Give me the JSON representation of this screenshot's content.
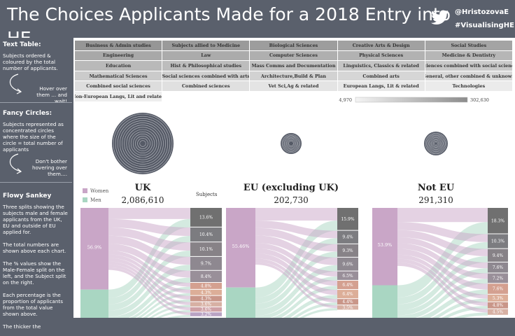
{
  "header": {
    "title": "The Choices Applicants Made for a 2018 Entry into",
    "title_line2": "HE",
    "handle": "@HristozovaE",
    "hashtag": "#VisualisingHE"
  },
  "sidebar": {
    "sections": [
      {
        "heading": "Text Table:",
        "text": "Subjects ordered & coloured by the total number of applicants.",
        "note": "Hover over them ... and wait!"
      },
      {
        "heading": "Fancy Circles:",
        "text": "Subjects represented as concentrated circles where the size of the circle = total number of applicants",
        "note": "Don't bother hovering over them...."
      },
      {
        "heading": "Flowy Sankey",
        "paragraphs": [
          "Three splits showing the subjects male and female applicants from the UK, EU and outside of EU applied for.",
          "The total numbers are shown above each chart.",
          "The % values show the Male-Female split on the left, and the Subject split on the right.",
          "Each percentage is the proportion of applicants from the total value shown above.",
          "The thicker the"
        ]
      }
    ]
  },
  "table": {
    "rows": [
      [
        "Business & Admin studies",
        "Subjects allied to Medicine",
        "Biological Sciences",
        "Creative Arts & Design",
        "Social Studies"
      ],
      [
        "Engineering",
        "Law",
        "Computer Sciences",
        "Physical Sciences",
        "Medicine & Dentistry"
      ],
      [
        "Education",
        "Hist & Philosophical studies",
        "Mass Comms and Documentation",
        "Linguistics, Classics & related",
        "Sciences combined with social science"
      ],
      [
        "Mathematical Sciences",
        "Social sciences combined with arts",
        "Architecture,Build & Plan",
        "Combined arts",
        "General, other combined & unknown"
      ],
      [
        "Combined social sciences",
        "Combined sciences",
        "Vet Sci,Ag & related",
        "European Langs, Lit & related",
        "Technologies"
      ],
      [
        "Non-European Langs, Lit and related"
      ]
    ],
    "legend": {
      "min": "4,970",
      "max": "302,630"
    }
  },
  "sankey": {
    "legend": {
      "women": "Women",
      "men": "Men"
    },
    "subjects_label": "Subjects",
    "panels": [
      {
        "title": "UK",
        "total": "2,086,610",
        "women_pct": "56.9%",
        "subjects": [
          "13.6%",
          "10.4%",
          "10.1%",
          "9.7%",
          "8.4%",
          "4.8%",
          "4.3%",
          "4.3%",
          "3.6%",
          "3.6%",
          "3.2%"
        ]
      },
      {
        "title": "EU (excluding UK)",
        "total": "202,730",
        "women_pct": "55.46%",
        "subjects": [
          "15.9%",
          "9.4%",
          "9.3%",
          "9.6%",
          "6.5%",
          "6.4%",
          "6.4%",
          "4.4%",
          "3.5%"
        ]
      },
      {
        "title": "Not EU",
        "total": "291,310",
        "women_pct": "53.9%",
        "subjects": [
          "18.3%",
          "10.3%",
          "9.4%",
          "7.6%",
          "7.2%",
          "7.6%",
          "5.3%",
          "4.8%",
          "4.5%"
        ]
      }
    ]
  }
}
